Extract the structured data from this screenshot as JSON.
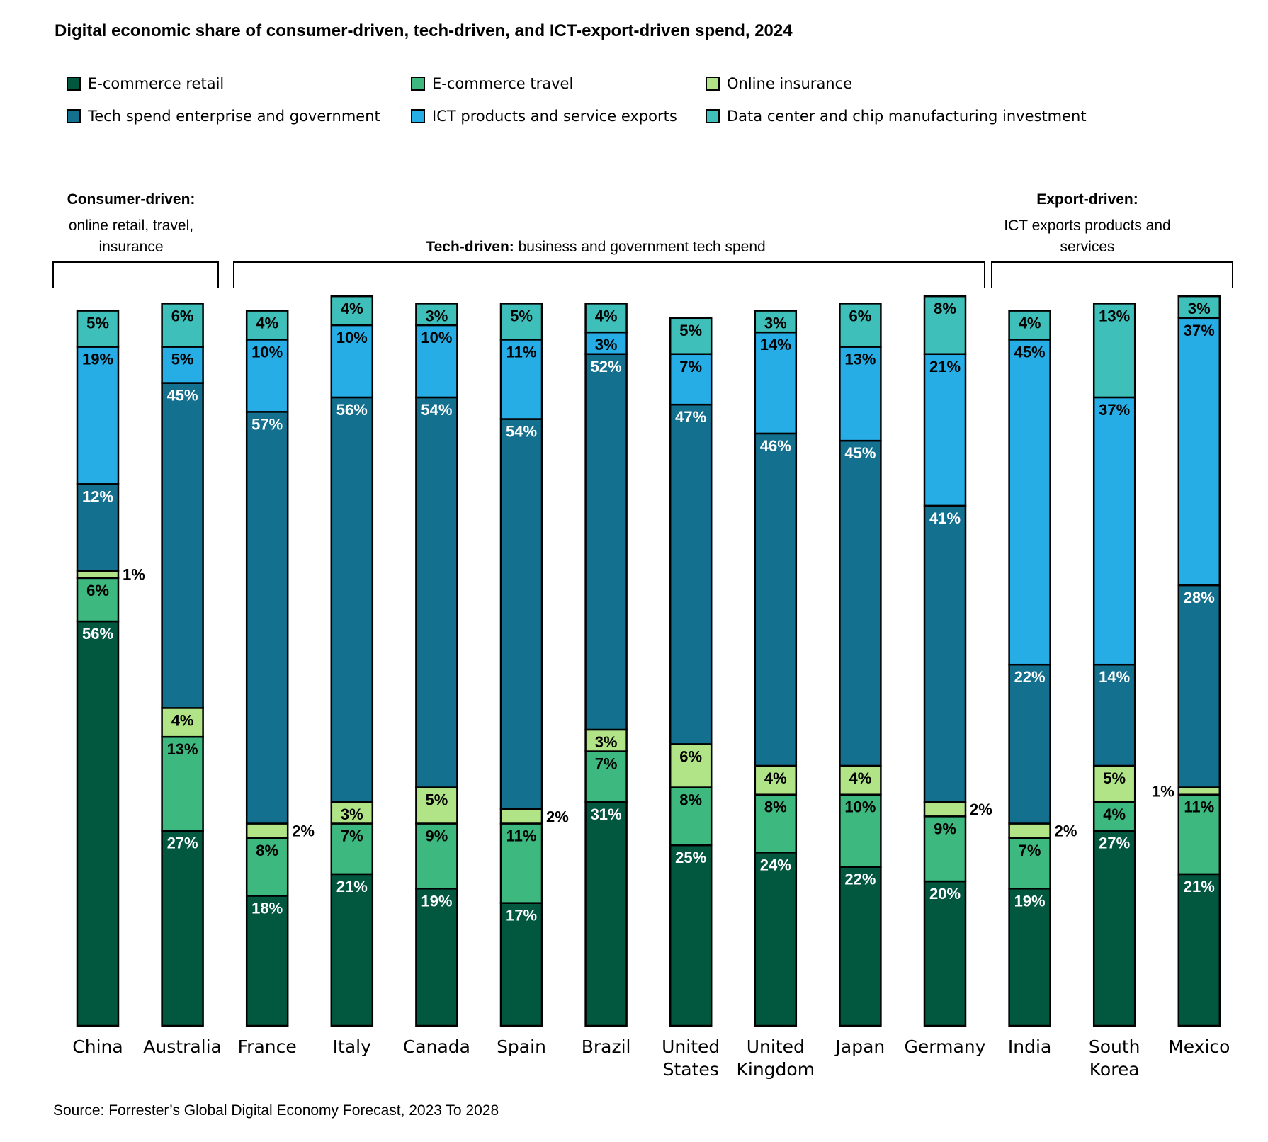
{
  "title": "Digital economic share of consumer-driven, tech-driven, and ICT-export-driven spend, 2024",
  "source": "Source: Forrester’s Global Digital Economy Forecast, 2023 To 2028",
  "colors": {
    "ecommerce_retail": "#02573F",
    "ecommerce_travel": "#3DB87E",
    "online_insurance": "#B0E487",
    "tech_spend": "#13708F",
    "ict_exports": "#27ADE6",
    "data_center": "#3FBFB9"
  },
  "legend": [
    {
      "label": "E-commerce retail",
      "color_key": "ecommerce_retail"
    },
    {
      "label": "E-commerce travel",
      "color_key": "ecommerce_travel"
    },
    {
      "label": "Online insurance",
      "color_key": "online_insurance"
    },
    {
      "label": "Tech spend enterprise and government",
      "color_key": "tech_spend"
    },
    {
      "label": "ICT products and service exports",
      "color_key": "ict_exports"
    },
    {
      "label": "Data center and chip manufacturing investment",
      "color_key": "data_center"
    }
  ],
  "groups": [
    {
      "bold": "Consumer-driven:",
      "rest": [
        "online retail, travel,",
        "insurance"
      ]
    },
    {
      "bold": "Tech-driven:",
      "rest": [
        "business and government tech spend"
      ]
    },
    {
      "bold": "Export-driven:",
      "rest": [
        "ICT exports products and",
        "services"
      ]
    }
  ],
  "chart_data": {
    "type": "bar",
    "stacked": true,
    "categories": [
      "China",
      "Australia",
      "France",
      "Italy",
      "Canada",
      "Spain",
      "Brazil",
      "United States",
      "United Kingdom",
      "Japan",
      "Germany",
      "India",
      "South Korea",
      "Mexico"
    ],
    "category_lines": [
      [
        "China"
      ],
      [
        "Australia"
      ],
      [
        "France"
      ],
      [
        "Italy"
      ],
      [
        "Canada"
      ],
      [
        "Spain"
      ],
      [
        "Brazil"
      ],
      [
        "United",
        "States"
      ],
      [
        "United",
        "Kingdom"
      ],
      [
        "Japan"
      ],
      [
        "Germany"
      ],
      [
        "India"
      ],
      [
        "South",
        "Korea"
      ],
      [
        "Mexico"
      ]
    ],
    "series": [
      {
        "name": "E-commerce retail",
        "color_key": "ecommerce_retail",
        "values": [
          56,
          27,
          18,
          21,
          19,
          17,
          31,
          25,
          24,
          22,
          20,
          19,
          27,
          21
        ]
      },
      {
        "name": "E-commerce travel",
        "color_key": "ecommerce_travel",
        "values": [
          6,
          13,
          8,
          7,
          9,
          11,
          7,
          8,
          8,
          10,
          9,
          7,
          4,
          11
        ]
      },
      {
        "name": "Online insurance",
        "color_key": "online_insurance",
        "values": [
          1,
          4,
          2,
          3,
          5,
          2,
          3,
          6,
          4,
          4,
          2,
          2,
          5,
          1
        ]
      },
      {
        "name": "Tech spend enterprise and government",
        "color_key": "tech_spend",
        "values": [
          12,
          45,
          57,
          56,
          54,
          54,
          52,
          47,
          46,
          45,
          41,
          22,
          14,
          28
        ]
      },
      {
        "name": "ICT products and service exports",
        "color_key": "ict_exports",
        "values": [
          19,
          5,
          10,
          10,
          10,
          11,
          3,
          7,
          14,
          13,
          21,
          45,
          37,
          37
        ]
      },
      {
        "name": "Data center and chip manufacturing investment",
        "color_key": "data_center",
        "values": [
          5,
          6,
          4,
          4,
          3,
          5,
          4,
          5,
          3,
          6,
          8,
          4,
          13,
          3
        ]
      }
    ],
    "value_suffix": "%",
    "ylim": [
      0,
      100
    ],
    "grid": false,
    "legend_position": "top"
  }
}
